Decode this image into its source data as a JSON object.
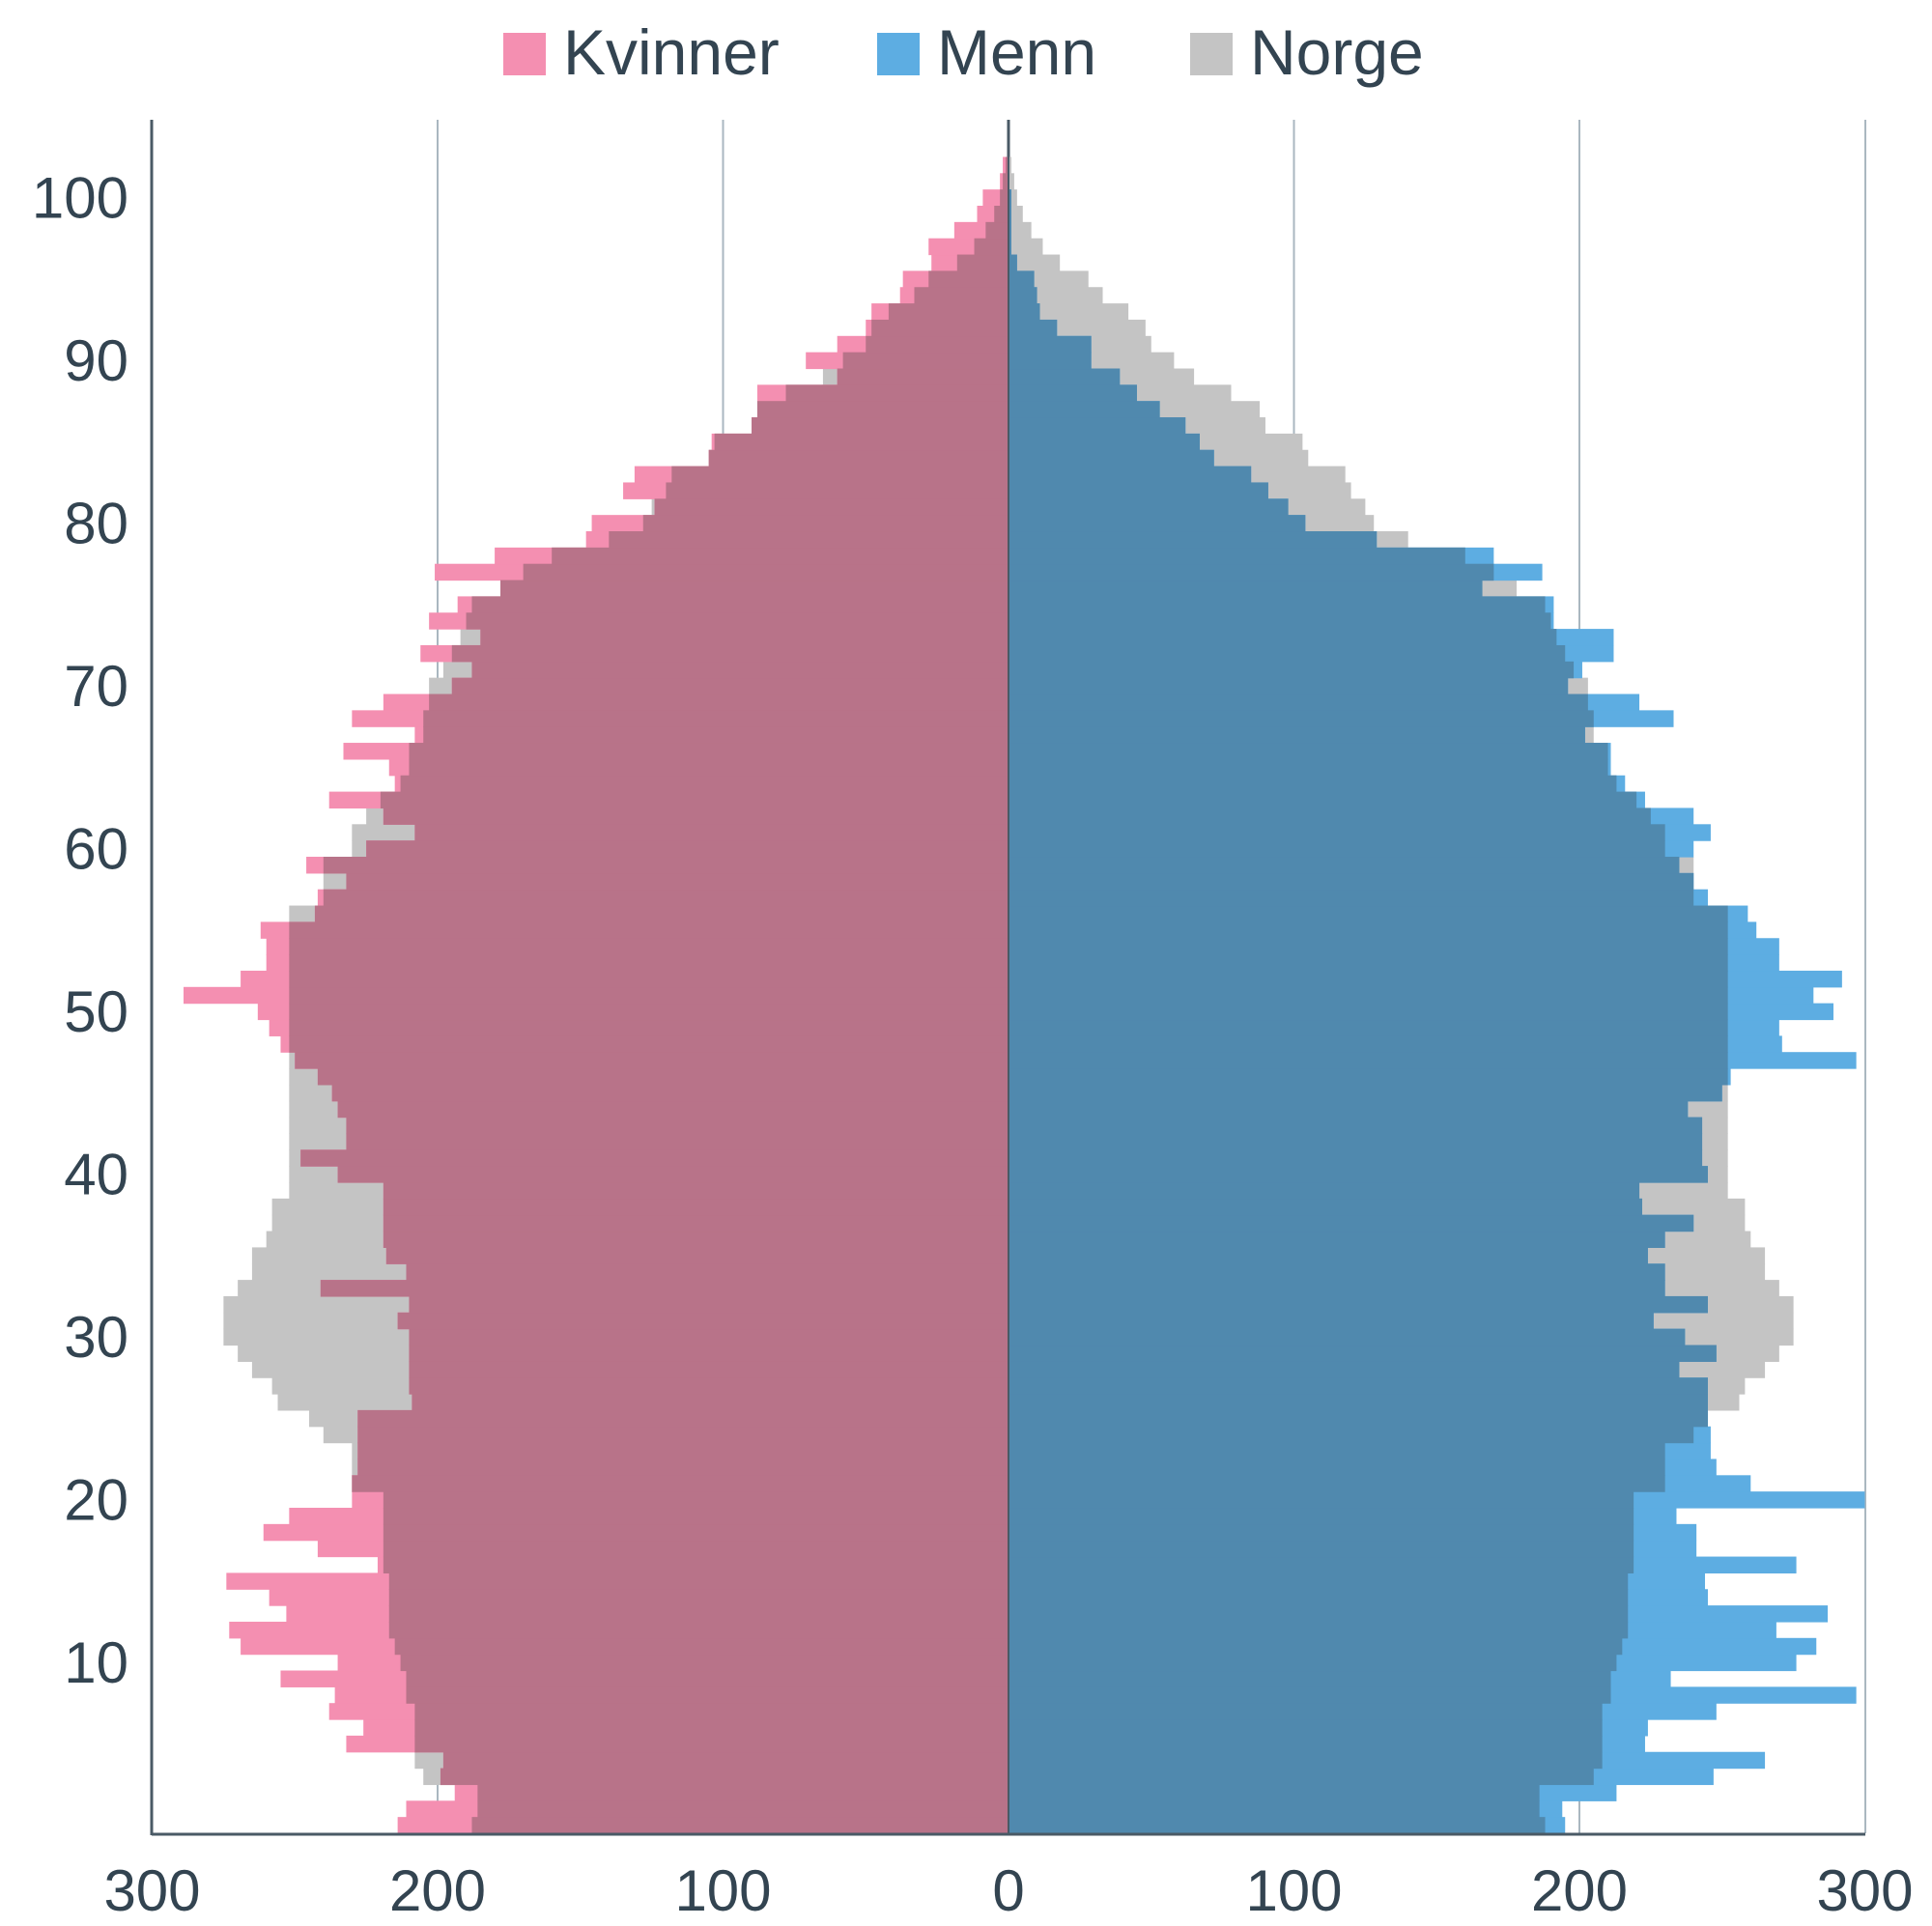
{
  "chart_data": {
    "type": "bar",
    "orientation": "horizontal",
    "subtype": "population-pyramid",
    "title": "",
    "xlabel": "",
    "ylabel": "",
    "xlim": [
      -300,
      300
    ],
    "ylim": [
      0,
      105
    ],
    "x_ticks": [
      -300,
      -200,
      -100,
      0,
      100,
      200,
      300
    ],
    "x_tick_labels": [
      "300",
      "200",
      "100",
      "0",
      "100",
      "200",
      "300"
    ],
    "y_ticks": [
      10,
      20,
      30,
      40,
      50,
      60,
      70,
      80,
      90,
      100
    ],
    "y_tick_labels": [
      "10",
      "20",
      "30",
      "40",
      "50",
      "60",
      "70",
      "80",
      "90",
      "100"
    ],
    "grid": "vertical",
    "legend": {
      "position": "top",
      "entries": [
        "Kvinner",
        "Menn",
        "Norge"
      ]
    },
    "colors": {
      "kvinner": "#f48fb1",
      "menn": "#5dade2",
      "norge": "#c4c4c4",
      "kvinner_overlap": "#b87389",
      "menn_overlap": "#5089ae",
      "grid": "#aab7c0",
      "axis": "#4a5a66",
      "text": "#334451"
    },
    "ages": [
      0,
      1,
      2,
      3,
      4,
      5,
      6,
      7,
      8,
      9,
      10,
      11,
      12,
      13,
      14,
      15,
      16,
      17,
      18,
      19,
      20,
      21,
      22,
      23,
      24,
      25,
      26,
      27,
      28,
      29,
      30,
      31,
      32,
      33,
      34,
      35,
      36,
      37,
      38,
      39,
      40,
      41,
      42,
      43,
      44,
      45,
      46,
      47,
      48,
      49,
      50,
      51,
      52,
      53,
      54,
      55,
      56,
      57,
      58,
      59,
      60,
      61,
      62,
      63,
      64,
      65,
      66,
      67,
      68,
      69,
      70,
      71,
      72,
      73,
      74,
      75,
      76,
      77,
      78,
      79,
      80,
      81,
      82,
      83,
      84,
      85,
      86,
      87,
      88,
      89,
      90,
      91,
      92,
      93,
      94,
      95,
      96,
      97,
      98,
      99,
      100,
      101,
      102
    ],
    "series": [
      {
        "name": "Kvinner",
        "side": "left",
        "values": [
          214,
          211,
          194,
          199,
          198,
          232,
          226,
          238,
          236,
          255,
          235,
          269,
          273,
          253,
          259,
          274,
          221,
          242,
          261,
          252,
          230,
          230,
          228,
          228,
          228,
          228,
          209,
          210,
          210,
          210,
          210,
          214,
          210,
          241,
          211,
          218,
          219,
          219,
          219,
          219,
          235,
          248,
          232,
          232,
          235,
          237,
          242,
          250,
          255,
          259,
          263,
          289,
          269,
          260,
          260,
          262,
          243,
          242,
          232,
          246,
          225,
          208,
          219,
          238,
          215,
          217,
          233,
          208,
          230,
          219,
          195,
          188,
          206,
          185,
          203,
          193,
          178,
          201,
          180,
          148,
          146,
          124,
          135,
          131,
          105,
          104,
          90,
          88,
          88,
          60,
          71,
          60,
          50,
          48,
          38,
          37,
          27,
          28,
          19,
          11,
          9,
          3,
          2
        ]
      },
      {
        "name": "Menn",
        "side": "right",
        "values": [
          195,
          194,
          213,
          247,
          265,
          223,
          224,
          248,
          297,
          232,
          276,
          283,
          269,
          287,
          245,
          244,
          276,
          241,
          241,
          234,
          300,
          260,
          248,
          246,
          246,
          245,
          245,
          245,
          235,
          248,
          237,
          226,
          245,
          230,
          230,
          224,
          230,
          240,
          222,
          221,
          245,
          243,
          243,
          243,
          238,
          250,
          253,
          297,
          271,
          270,
          289,
          282,
          292,
          270,
          270,
          262,
          259,
          245,
          240,
          235,
          240,
          246,
          240,
          223,
          216,
          211,
          211,
          202,
          233,
          221,
          196,
          201,
          212,
          212,
          191,
          191,
          166,
          187,
          170,
          129,
          104,
          98,
          91,
          85,
          72,
          67,
          62,
          53,
          45,
          39,
          29,
          29,
          17,
          11,
          10,
          9,
          3,
          1,
          1,
          1,
          1,
          0,
          0
        ]
      },
      {
        "name": "Norge",
        "side": "both",
        "values": [
          188,
          186,
          186,
          205,
          208,
          208,
          208,
          208,
          211,
          211,
          213,
          215,
          217,
          217,
          217,
          217,
          219,
          219,
          219,
          219,
          219,
          230,
          230,
          230,
          240,
          245,
          256,
          258,
          265,
          270,
          275,
          275,
          275,
          270,
          265,
          265,
          260,
          258,
          258,
          252,
          252,
          252,
          252,
          252,
          252,
          252,
          252,
          252,
          252,
          252,
          252,
          252,
          252,
          252,
          252,
          252,
          252,
          240,
          240,
          240,
          230,
          230,
          225,
          220,
          213,
          210,
          210,
          205,
          205,
          203,
          203,
          198,
          195,
          192,
          190,
          188,
          178,
          170,
          160,
          140,
          128,
          125,
          120,
          118,
          105,
          103,
          90,
          88,
          78,
          65,
          58,
          50,
          48,
          42,
          33,
          28,
          18,
          12,
          8,
          5,
          3,
          2,
          1
        ]
      }
    ]
  }
}
